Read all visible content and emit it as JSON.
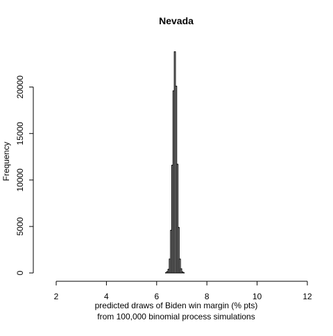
{
  "chart_data": {
    "type": "bar",
    "title": "Nevada",
    "xlabel": "predicted draws of Biden win margin (% pts)",
    "xlabel_line2": "from 100,000 binomial process simulations",
    "ylabel": "Frequency",
    "xlim": [
      2,
      12
    ],
    "ylim": [
      0,
      24000
    ],
    "x_ticks": [
      2,
      4,
      6,
      8,
      10,
      12
    ],
    "y_ticks": [
      0,
      5000,
      10000,
      15000,
      20000
    ],
    "bin_width": 0.05,
    "bins": [
      {
        "x0": 6.35,
        "count": 30
      },
      {
        "x0": 6.4,
        "count": 150
      },
      {
        "x0": 6.45,
        "count": 400
      },
      {
        "x0": 6.5,
        "count": 1500
      },
      {
        "x0": 6.55,
        "count": 4600
      },
      {
        "x0": 6.6,
        "count": 11600
      },
      {
        "x0": 6.65,
        "count": 19600
      },
      {
        "x0": 6.7,
        "count": 23800
      },
      {
        "x0": 6.75,
        "count": 20100
      },
      {
        "x0": 6.8,
        "count": 11700
      },
      {
        "x0": 6.85,
        "count": 4900
      },
      {
        "x0": 6.9,
        "count": 1500
      },
      {
        "x0": 6.95,
        "count": 450
      },
      {
        "x0": 7.0,
        "count": 120
      },
      {
        "x0": 7.05,
        "count": 30
      }
    ]
  }
}
